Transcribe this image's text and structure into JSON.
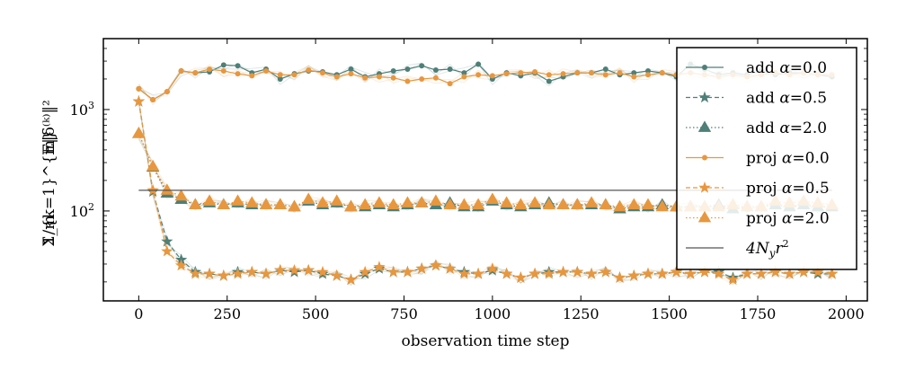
{
  "chart_data": {
    "type": "line",
    "title": "",
    "xlabel": "observation time step",
    "ylabel": "(1/m) Σ_{k=1}^{m} E‖δ^(k)‖²",
    "ylabel_parts": {
      "frac": "1/m",
      "sum": "Σ_{k=1}^{m}",
      "body": "𝔼‖δ⁽ᵏ⁾‖²"
    },
    "xlim": [
      -100,
      2060
    ],
    "ylim": [
      13,
      5000
    ],
    "yscale": "log",
    "x_ticks": [
      0,
      250,
      500,
      750,
      1000,
      1250,
      1500,
      1750,
      2000
    ],
    "x_tick_labels": [
      "0",
      "250",
      "500",
      "750",
      "1000",
      "1250",
      "1500",
      "1750",
      "2000"
    ],
    "y_ticks": [
      100,
      1000
    ],
    "y_tick_labels": {
      "base": "10",
      "exponents": [
        "2",
        "3"
      ]
    },
    "x": [
      0,
      40,
      80,
      120,
      160,
      200,
      240,
      280,
      320,
      360,
      400,
      440,
      480,
      520,
      560,
      600,
      640,
      680,
      720,
      760,
      800,
      840,
      880,
      920,
      960,
      1000,
      1040,
      1080,
      1120,
      1160,
      1200,
      1240,
      1280,
      1320,
      1360,
      1400,
      1440,
      1480,
      1520,
      1560,
      1600,
      1640,
      1680,
      1720,
      1760,
      1800,
      1840,
      1880,
      1920,
      1960
    ],
    "series": [
      {
        "name": "add α=0.0",
        "legend_prefix": "add",
        "alpha_value": "0.0",
        "color": "#4e7f78",
        "marker": "circle",
        "linestyle": "solid",
        "values": [
          1600,
          1250,
          1500,
          2400,
          2300,
          2350,
          2750,
          2700,
          2300,
          2500,
          2000,
          2250,
          2400,
          2350,
          2200,
          2500,
          2100,
          2250,
          2400,
          2500,
          2700,
          2450,
          2500,
          2300,
          2800,
          2000,
          2300,
          2150,
          2300,
          1900,
          2100,
          2300,
          2300,
          2500,
          2200,
          2300,
          2400,
          2300,
          2100,
          2800,
          2500,
          2200,
          2300,
          2200,
          2400,
          2200,
          2300,
          2300,
          2200,
          2100
        ]
      },
      {
        "name": "add α=0.5",
        "legend_prefix": "add",
        "alpha_value": "0.5",
        "color": "#4e7f78",
        "marker": "star",
        "linestyle": "dashed",
        "values": [
          1200,
          155,
          50,
          33,
          25,
          24,
          23,
          25,
          25,
          24,
          26,
          25,
          26,
          24,
          23,
          21,
          24,
          27,
          25,
          25,
          27,
          29,
          27,
          25,
          24,
          26,
          24,
          22,
          24,
          25,
          25,
          25,
          24,
          25,
          22,
          23,
          24,
          24,
          25,
          24,
          25,
          25,
          22,
          24,
          24,
          25,
          24,
          25,
          24,
          24
        ]
      },
      {
        "name": "add α=2.0",
        "legend_prefix": "add",
        "alpha_value": "2.0",
        "color": "#4e7f78",
        "marker": "triangle",
        "linestyle": "dotted",
        "values": [
          580,
          270,
          150,
          130,
          115,
          120,
          115,
          120,
          115,
          115,
          115,
          110,
          125,
          115,
          120,
          110,
          110,
          115,
          110,
          115,
          120,
          115,
          120,
          110,
          110,
          125,
          115,
          110,
          115,
          120,
          115,
          115,
          115,
          115,
          105,
          110,
          110,
          115,
          110,
          110,
          110,
          115,
          105,
          110,
          110,
          115,
          110,
          115,
          110,
          110
        ]
      },
      {
        "name": "proj α=0.0",
        "legend_prefix": "proj",
        "alpha_value": "0.0",
        "color": "#e8973e",
        "marker": "circle",
        "linestyle": "solid",
        "values": [
          1600,
          1250,
          1500,
          2400,
          2300,
          2500,
          2400,
          2250,
          2150,
          2400,
          2200,
          2200,
          2450,
          2300,
          2100,
          2250,
          2050,
          2100,
          2050,
          1900,
          2000,
          2050,
          1800,
          2100,
          2200,
          2150,
          2250,
          2300,
          2350,
          2200,
          2250,
          2300,
          2300,
          2200,
          2300,
          2100,
          2200,
          2300,
          2200,
          2300,
          2200,
          2100,
          2200,
          2100,
          2200,
          2300,
          2200,
          2300,
          2200,
          2200
        ]
      },
      {
        "name": "proj α=0.5",
        "legend_prefix": "proj",
        "alpha_value": "0.5",
        "color": "#e8973e",
        "marker": "star",
        "linestyle": "dashed",
        "values": [
          1200,
          160,
          40,
          29,
          24,
          24,
          23,
          24,
          25,
          24,
          26,
          26,
          26,
          25,
          23,
          21,
          25,
          28,
          25,
          25,
          27,
          29,
          27,
          24,
          24,
          27,
          24,
          22,
          24,
          24,
          25,
          25,
          24,
          25,
          22,
          23,
          24,
          24,
          25,
          24,
          25,
          24,
          21,
          24,
          24,
          25,
          24,
          25,
          25,
          24
        ]
      },
      {
        "name": "proj α=2.0",
        "legend_prefix": "proj",
        "alpha_value": "2.0",
        "color": "#e8973e",
        "marker": "triangle",
        "linestyle": "dotted",
        "values": [
          580,
          275,
          160,
          140,
          115,
          125,
          115,
          125,
          120,
          115,
          115,
          110,
          130,
          120,
          125,
          110,
          115,
          120,
          115,
          120,
          120,
          125,
          115,
          115,
          115,
          130,
          120,
          115,
          120,
          115,
          115,
          115,
          120,
          115,
          110,
          115,
          115,
          110,
          110,
          110,
          110,
          110,
          115,
          110,
          110,
          125,
          120,
          125,
          120,
          115
        ]
      },
      {
        "name": "4N_y r²",
        "legend_text": "4N",
        "legend_sub": "y",
        "legend_tail": "r",
        "legend_sup": "2",
        "color": "#555555",
        "marker": "none",
        "linestyle": "solid",
        "type": "hline",
        "value": 160,
        "x_range": [
          0,
          1960
        ]
      }
    ]
  }
}
